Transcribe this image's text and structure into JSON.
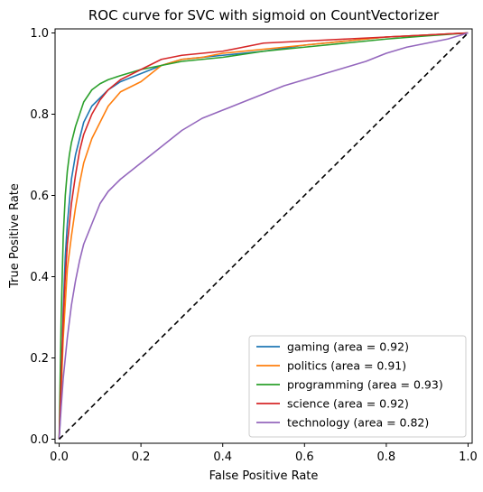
{
  "chart_data": {
    "type": "line",
    "title": "ROC curve for SVC with sigmoid on CountVectorizer",
    "xlabel": "False Positive Rate",
    "ylabel": "True Positive Rate",
    "xlim": [
      -0.01,
      1.01
    ],
    "ylim": [
      -0.01,
      1.01
    ],
    "xticks": [
      "0.0",
      "0.2",
      "0.4",
      "0.6",
      "0.8",
      "1.0"
    ],
    "yticks": [
      "0.0",
      "0.2",
      "0.4",
      "0.6",
      "0.8",
      "1.0"
    ],
    "grid": false,
    "legend_position": "lower-right",
    "diagonal": {
      "x": [
        0,
        1
      ],
      "y": [
        0,
        1
      ],
      "style": "dashed",
      "color": "#000000"
    },
    "series": [
      {
        "name": "gaming (area = 0.92)",
        "color": "#1f77b4",
        "x": [
          0,
          0.005,
          0.01,
          0.015,
          0.02,
          0.03,
          0.04,
          0.05,
          0.06,
          0.08,
          0.1,
          0.12,
          0.15,
          0.2,
          0.25,
          0.3,
          0.35,
          0.4,
          0.5,
          0.6,
          0.7,
          0.8,
          0.9,
          1.0
        ],
        "y": [
          0,
          0.1,
          0.32,
          0.45,
          0.53,
          0.64,
          0.7,
          0.74,
          0.78,
          0.82,
          0.84,
          0.86,
          0.88,
          0.9,
          0.92,
          0.935,
          0.94,
          0.945,
          0.955,
          0.97,
          0.98,
          0.99,
          0.995,
          1.0
        ]
      },
      {
        "name": "politics (area = 0.91)",
        "color": "#ff7f0e",
        "x": [
          0,
          0.005,
          0.01,
          0.02,
          0.03,
          0.04,
          0.05,
          0.06,
          0.08,
          0.1,
          0.12,
          0.15,
          0.2,
          0.25,
          0.3,
          0.35,
          0.4,
          0.5,
          0.6,
          0.7,
          0.8,
          0.9,
          1.0
        ],
        "y": [
          0,
          0.12,
          0.25,
          0.42,
          0.5,
          0.57,
          0.63,
          0.68,
          0.74,
          0.78,
          0.82,
          0.855,
          0.88,
          0.92,
          0.935,
          0.94,
          0.95,
          0.96,
          0.97,
          0.98,
          0.99,
          0.995,
          1.0
        ]
      },
      {
        "name": "programming (area = 0.93)",
        "color": "#2ca02c",
        "x": [
          0,
          0.005,
          0.01,
          0.015,
          0.02,
          0.025,
          0.03,
          0.04,
          0.05,
          0.06,
          0.08,
          0.1,
          0.12,
          0.15,
          0.2,
          0.25,
          0.3,
          0.4,
          0.5,
          0.6,
          0.7,
          0.8,
          0.9,
          1.0
        ],
        "y": [
          0,
          0.3,
          0.5,
          0.6,
          0.66,
          0.7,
          0.73,
          0.77,
          0.8,
          0.83,
          0.86,
          0.875,
          0.885,
          0.895,
          0.91,
          0.92,
          0.93,
          0.94,
          0.955,
          0.965,
          0.975,
          0.985,
          0.993,
          1.0
        ]
      },
      {
        "name": "science (area = 0.92)",
        "color": "#d62728",
        "x": [
          0,
          0.005,
          0.01,
          0.015,
          0.02,
          0.03,
          0.04,
          0.05,
          0.06,
          0.08,
          0.1,
          0.12,
          0.15,
          0.2,
          0.25,
          0.3,
          0.35,
          0.4,
          0.5,
          0.6,
          0.7,
          0.8,
          0.9,
          1.0
        ],
        "y": [
          0,
          0.15,
          0.3,
          0.4,
          0.48,
          0.58,
          0.65,
          0.71,
          0.75,
          0.8,
          0.835,
          0.86,
          0.885,
          0.91,
          0.935,
          0.945,
          0.95,
          0.955,
          0.975,
          0.98,
          0.985,
          0.99,
          0.995,
          1.0
        ]
      },
      {
        "name": "technology (area = 0.82)",
        "color": "#9467bd",
        "x": [
          0,
          0.005,
          0.01,
          0.02,
          0.03,
          0.04,
          0.05,
          0.06,
          0.08,
          0.1,
          0.12,
          0.15,
          0.2,
          0.25,
          0.3,
          0.35,
          0.4,
          0.45,
          0.5,
          0.55,
          0.6,
          0.65,
          0.7,
          0.75,
          0.8,
          0.85,
          0.9,
          0.95,
          1.0
        ],
        "y": [
          0,
          0.08,
          0.15,
          0.25,
          0.33,
          0.39,
          0.44,
          0.48,
          0.53,
          0.58,
          0.61,
          0.64,
          0.68,
          0.72,
          0.76,
          0.79,
          0.81,
          0.83,
          0.85,
          0.87,
          0.885,
          0.9,
          0.915,
          0.93,
          0.95,
          0.965,
          0.975,
          0.985,
          1.0
        ]
      }
    ]
  }
}
